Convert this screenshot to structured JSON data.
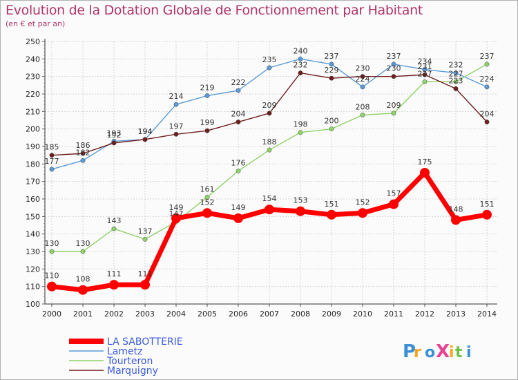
{
  "header": {
    "title": "Evolution de la Dotation Globale de Fonctionnement par Habitant",
    "subtitle": "(en € et par an)"
  },
  "logo": {
    "text": "ProXiti"
  },
  "chart_data": {
    "type": "line",
    "title": "Evolution de la Dotation Globale de Fonctionnement par Habitant",
    "subtitle": "(en € et par an)",
    "xlabel": "",
    "ylabel": "",
    "ylim": [
      100,
      250
    ],
    "yticks": [
      100,
      110,
      120,
      130,
      140,
      150,
      160,
      170,
      180,
      190,
      200,
      210,
      220,
      230,
      240,
      250
    ],
    "categories": [
      "2000",
      "2001",
      "2002",
      "2003",
      "2004",
      "2005",
      "2006",
      "2007",
      "2008",
      "2009",
      "2010",
      "2011",
      "2012",
      "2013",
      "2014"
    ],
    "legend_position": "bottom-left",
    "grid": true,
    "series": [
      {
        "name": "Lametz",
        "color": "#5b9bd5",
        "values": [
          177,
          182,
          193,
          194,
          214,
          219,
          222,
          235,
          240,
          237,
          224,
          237,
          234,
          232,
          224
        ]
      },
      {
        "name": "Tourteron",
        "color": "#8fd16a",
        "values": [
          130,
          130,
          143,
          137,
          147,
          161,
          176,
          188,
          198,
          200,
          208,
          209,
          227,
          227,
          237
        ]
      },
      {
        "name": "Marquigny",
        "color": "#6e1e1e",
        "values": [
          185,
          186,
          192,
          194,
          197,
          199,
          204,
          209,
          232,
          229,
          230,
          230,
          231,
          223,
          204
        ]
      },
      {
        "name": "LA SABOTTERIE",
        "color": "#ff0000",
        "values": [
          110,
          108,
          111,
          111,
          149,
          152,
          149,
          154,
          153,
          151,
          152,
          157,
          175,
          148,
          151
        ]
      }
    ],
    "legend": [
      "LA SABOTTERIE",
      "Lametz",
      "Tourteron",
      "Marquigny"
    ],
    "legend_colors": {
      "LA SABOTTERIE": "#ff0000",
      "Lametz": "#5b9bd5",
      "Tourteron": "#8fd16a",
      "Marquigny": "#6e1e1e",
      "LA SABOTTERIE_text": "#3b5bdb",
      "Lametz_text": "#3b5bdb",
      "Tourteron_text": "#3b5bdb",
      "Marquigny_text": "#3b5bdb"
    }
  }
}
